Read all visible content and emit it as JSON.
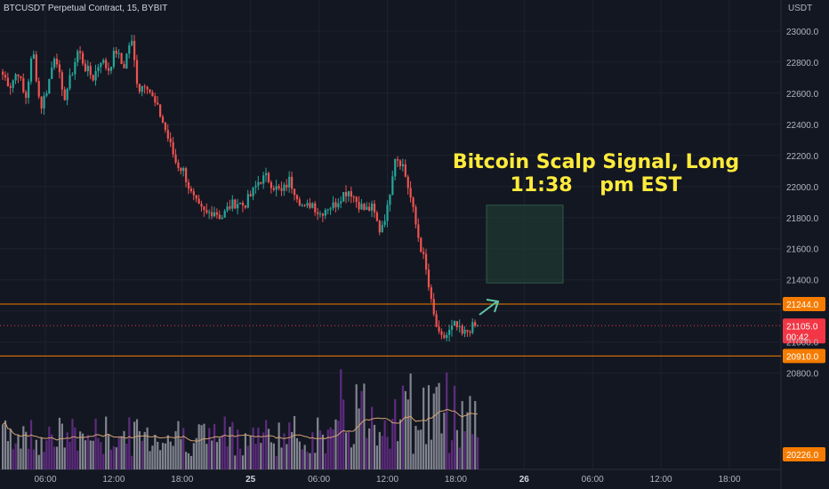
{
  "header": {
    "symbol_label": "BTCUSDT Perpetual Contract, 15, BYBIT",
    "currency": "USDT"
  },
  "annotation": {
    "line1": "Bitcoin Scalp Signal, Long",
    "line2": "11:38    pm EST"
  },
  "colors": {
    "background": "#131722",
    "up": "#26a69a",
    "down": "#ef5350",
    "vol_up": "#6c2f8f",
    "vol_down": "#9598a1",
    "ma": "#d4a373",
    "annotation": "#ffeb3b",
    "level": "#f57c00",
    "current": "#f23645",
    "zone": "#1f3a32"
  },
  "chart_data": {
    "type": "candlestick",
    "x_ticks": [
      "06:00",
      "12:00",
      "18:00",
      "25",
      "06:00",
      "12:00",
      "18:00",
      "26",
      "06:00",
      "12:00",
      "18:00"
    ],
    "y_ticks": [
      20800,
      21000,
      21200,
      21400,
      21600,
      21800,
      22000,
      22200,
      22400,
      22600,
      22800,
      23000
    ],
    "ylim": [
      20180,
      23200
    ],
    "levels": [
      {
        "label": "21244.0",
        "value": 21244
      },
      {
        "label": "20910.0",
        "value": 20910
      }
    ],
    "current": {
      "price_label": "21105.0",
      "countdown": "00:42",
      "value": 21105
    },
    "volume_ma_label": "20226.0",
    "target_zone": {
      "from": 21380,
      "to": 21880
    },
    "close_path": [
      22720,
      22650,
      22750,
      22550,
      22880,
      22500,
      22650,
      22880,
      22550,
      22700,
      22880,
      22760,
      22700,
      22820,
      22750,
      22880,
      22760,
      22960,
      22620,
      22680,
      22550,
      22450,
      22300,
      22150,
      22100,
      21950,
      21860,
      21820,
      21850,
      21800,
      21870,
      21900,
      21880,
      21950,
      22040,
      22060,
      22000,
      21960,
      22040,
      21950,
      21850,
      21900,
      21820,
      21870,
      21880,
      21950,
      21980,
      21900,
      21850,
      21860,
      21720,
      21850,
      22200,
      22150,
      21950,
      21700,
      21500,
      21200,
      21010,
      21050,
      21110,
      21040,
      21090,
      21105
    ]
  }
}
